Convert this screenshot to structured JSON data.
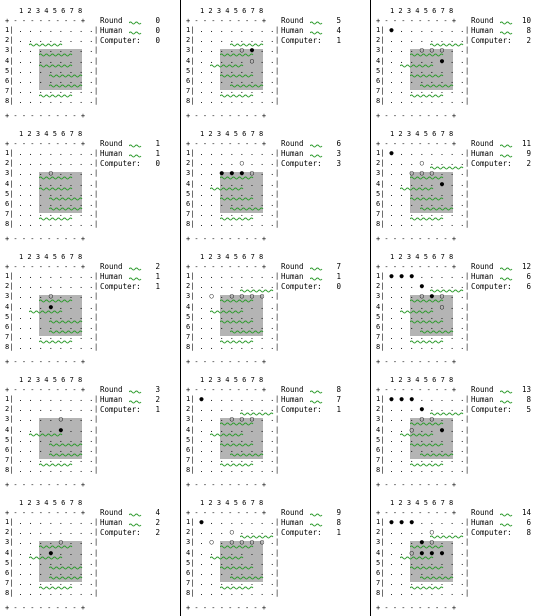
{
  "column_header": "1 2 3 4 5 6 7 8",
  "row_labels": [
    "1|",
    "2|",
    "3|",
    "4|",
    "5|",
    "6|",
    "7|",
    "8|"
  ],
  "border_line": "+ - - - - - - - - +",
  "labels": {
    "round": "Round",
    "human": "Human",
    "computer": "Computer:"
  },
  "colors": {
    "board_fill": "#b4b4b4",
    "squiggle": "#2c9a2c"
  },
  "panels": [
    {
      "round": "0",
      "human": "0",
      "computer": "0",
      "gray": [
        3,
        3,
        4,
        4
      ],
      "black": [],
      "white": [],
      "wavy": [
        [
          2,
          0
        ],
        [
          3,
          1
        ],
        [
          4,
          1
        ],
        [
          5,
          2
        ],
        [
          6,
          2
        ],
        [
          7,
          1
        ]
      ]
    },
    {
      "round": "1",
      "human": "1",
      "computer": "0",
      "gray": [
        3,
        3,
        4,
        4
      ],
      "black": [],
      "white": [
        [
          3,
          4
        ]
      ],
      "wavy": [
        [
          3,
          1
        ],
        [
          4,
          1
        ],
        [
          5,
          2
        ],
        [
          6,
          2
        ],
        [
          7,
          1
        ]
      ]
    },
    {
      "round": "2",
      "human": "1",
      "computer": "1",
      "gray": [
        3,
        3,
        4,
        4
      ],
      "black": [
        [
          4,
          4
        ]
      ],
      "white": [
        [
          3,
          4
        ]
      ],
      "wavy": [
        [
          3,
          1
        ],
        [
          4,
          0
        ],
        [
          5,
          2
        ],
        [
          6,
          2
        ],
        [
          7,
          1
        ]
      ]
    },
    {
      "round": "3",
      "human": "2",
      "computer": "1",
      "gray": [
        3,
        3,
        4,
        4
      ],
      "black": [
        [
          4,
          5
        ]
      ],
      "white": [
        [
          3,
          5
        ]
      ],
      "wavy": [
        [
          4,
          0
        ],
        [
          5,
          2
        ],
        [
          6,
          2
        ],
        [
          7,
          1
        ]
      ]
    },
    {
      "round": "4",
      "human": "2",
      "computer": "2",
      "gray": [
        3,
        3,
        4,
        4
      ],
      "black": [
        [
          4,
          4
        ]
      ],
      "white": [
        [
          3,
          5
        ]
      ],
      "wavy": [
        [
          3,
          1
        ],
        [
          4,
          0
        ],
        [
          5,
          2
        ],
        [
          6,
          2
        ],
        [
          7,
          1
        ]
      ]
    },
    {
      "round": "5",
      "human": "4",
      "computer": "1",
      "gray": [
        3,
        3,
        4,
        4
      ],
      "black": [
        [
          3,
          6
        ]
      ],
      "white": [
        [
          3,
          5
        ],
        [
          4,
          6
        ]
      ],
      "wavy": [
        [
          2,
          2
        ],
        [
          3,
          1
        ],
        [
          4,
          0
        ],
        [
          5,
          1
        ],
        [
          6,
          2
        ],
        [
          7,
          1
        ]
      ]
    },
    {
      "round": "6",
      "human": "3",
      "computer": "3",
      "gray": [
        3,
        3,
        4,
        4
      ],
      "black": [
        [
          3,
          3
        ],
        [
          3,
          4
        ],
        [
          3,
          5
        ]
      ],
      "white": [
        [
          3,
          6
        ],
        [
          2,
          5
        ]
      ],
      "wavy": [
        [
          3,
          1
        ],
        [
          4,
          0
        ],
        [
          5,
          1
        ],
        [
          6,
          2
        ],
        [
          7,
          1
        ]
      ]
    },
    {
      "round": "7",
      "human": "1",
      "computer": "0",
      "gray": [
        3,
        3,
        4,
        4
      ],
      "black": [],
      "white": [
        [
          3,
          2
        ],
        [
          3,
          4
        ],
        [
          3,
          5
        ],
        [
          3,
          6
        ],
        [
          3,
          7
        ]
      ],
      "wavy": [
        [
          2,
          3
        ],
        [
          3,
          1
        ],
        [
          4,
          0
        ],
        [
          5,
          1
        ],
        [
          6,
          2
        ],
        [
          7,
          1
        ]
      ]
    },
    {
      "round": "8",
      "human": "7",
      "computer": "1",
      "gray": [
        3,
        3,
        4,
        4
      ],
      "black": [
        [
          1,
          1
        ]
      ],
      "white": [
        [
          3,
          4
        ],
        [
          3,
          5
        ],
        [
          3,
          6
        ]
      ],
      "wavy": [
        [
          2,
          3
        ],
        [
          3,
          1
        ],
        [
          4,
          0
        ],
        [
          5,
          1
        ],
        [
          6,
          2
        ],
        [
          7,
          1
        ]
      ]
    },
    {
      "round": "9",
      "human": "8",
      "computer": "1",
      "gray": [
        3,
        3,
        4,
        4
      ],
      "black": [
        [
          1,
          1
        ]
      ],
      "white": [
        [
          2,
          4
        ],
        [
          3,
          2
        ],
        [
          3,
          4
        ],
        [
          3,
          5
        ],
        [
          3,
          6
        ],
        [
          3,
          7
        ]
      ],
      "wavy": [
        [
          2,
          3
        ],
        [
          3,
          1
        ],
        [
          4,
          0
        ],
        [
          5,
          1
        ],
        [
          6,
          2
        ],
        [
          7,
          1
        ]
      ]
    },
    {
      "round": "10",
      "human": "8",
      "computer": "2",
      "gray": [
        3,
        3,
        4,
        4
      ],
      "black": [
        [
          1,
          1
        ],
        [
          4,
          6
        ]
      ],
      "white": [
        [
          3,
          4
        ],
        [
          3,
          5
        ],
        [
          3,
          6
        ]
      ],
      "wavy": [
        [
          2,
          3
        ],
        [
          3,
          1
        ],
        [
          4,
          0
        ],
        [
          5,
          1
        ],
        [
          6,
          2
        ],
        [
          7,
          1
        ]
      ]
    },
    {
      "round": "11",
      "human": "9",
      "computer": "2",
      "gray": [
        3,
        3,
        4,
        4
      ],
      "black": [
        [
          1,
          1
        ],
        [
          4,
          6
        ]
      ],
      "white": [
        [
          2,
          4
        ],
        [
          3,
          3
        ],
        [
          3,
          4
        ],
        [
          3,
          5
        ]
      ],
      "wavy": [
        [
          2,
          3
        ],
        [
          3,
          1
        ],
        [
          4,
          0
        ],
        [
          5,
          1
        ],
        [
          6,
          2
        ],
        [
          7,
          1
        ]
      ]
    },
    {
      "round": "12",
      "human": "6",
      "computer": "6",
      "gray": [
        3,
        3,
        4,
        4
      ],
      "black": [
        [
          1,
          1
        ],
        [
          1,
          2
        ],
        [
          1,
          3
        ],
        [
          2,
          4
        ],
        [
          3,
          5
        ]
      ],
      "white": [
        [
          3,
          4
        ],
        [
          3,
          6
        ],
        [
          4,
          6
        ]
      ],
      "wavy": [
        [
          2,
          3
        ],
        [
          3,
          1
        ],
        [
          4,
          0
        ],
        [
          5,
          1
        ],
        [
          6,
          2
        ],
        [
          7,
          1
        ]
      ]
    },
    {
      "round": "13",
      "human": "8",
      "computer": "5",
      "gray": [
        3,
        3,
        4,
        4
      ],
      "black": [
        [
          1,
          1
        ],
        [
          1,
          2
        ],
        [
          1,
          3
        ],
        [
          2,
          4
        ],
        [
          4,
          6
        ]
      ],
      "white": [
        [
          3,
          4
        ],
        [
          3,
          5
        ],
        [
          4,
          3
        ]
      ],
      "wavy": [
        [
          2,
          3
        ],
        [
          3,
          1
        ],
        [
          4,
          0
        ],
        [
          5,
          1
        ],
        [
          6,
          2
        ],
        [
          7,
          1
        ]
      ]
    },
    {
      "round": "14",
      "human": "6",
      "computer": "8",
      "gray": [
        3,
        3,
        4,
        4
      ],
      "black": [
        [
          1,
          1
        ],
        [
          1,
          2
        ],
        [
          1,
          3
        ],
        [
          3,
          4
        ],
        [
          4,
          4
        ],
        [
          4,
          5
        ],
        [
          4,
          6
        ]
      ],
      "white": [
        [
          2,
          5
        ],
        [
          3,
          5
        ],
        [
          4,
          3
        ]
      ],
      "wavy": [
        [
          2,
          3
        ],
        [
          3,
          1
        ],
        [
          4,
          0
        ],
        [
          5,
          1
        ],
        [
          6,
          2
        ],
        [
          7,
          1
        ]
      ]
    }
  ]
}
